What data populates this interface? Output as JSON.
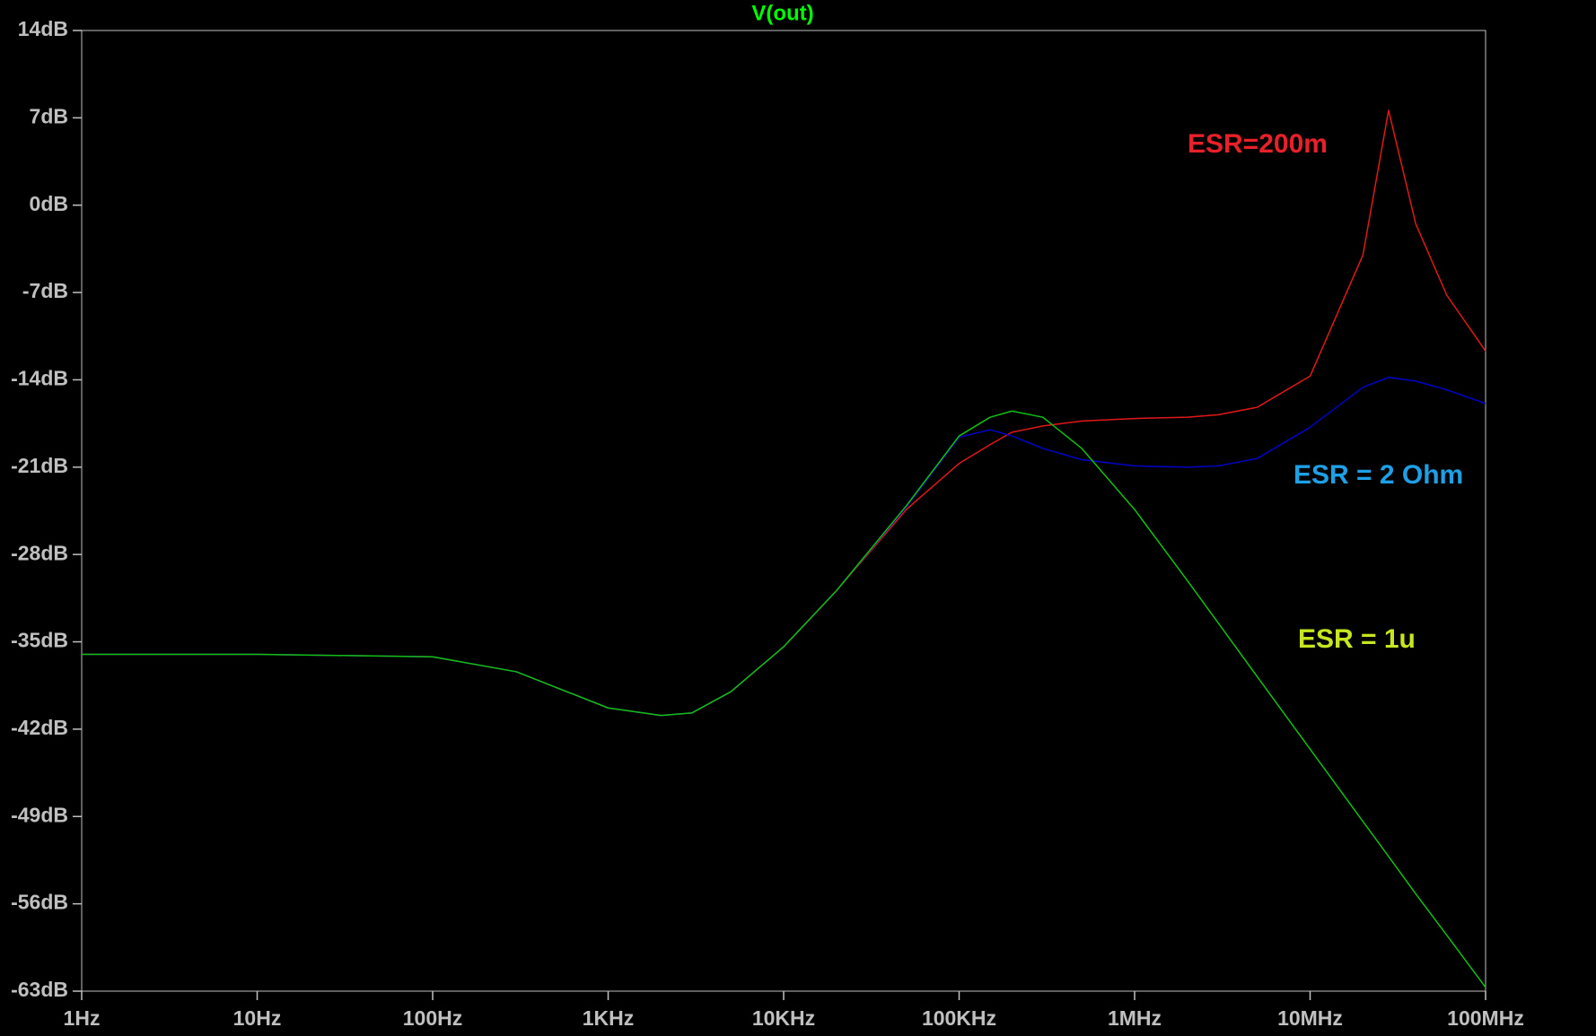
{
  "chart_data": {
    "type": "line",
    "title": "V(out)",
    "title_color": "#00ff00",
    "log_x": true,
    "x": [
      1,
      10,
      100,
      300,
      1000,
      2000,
      3000,
      5000,
      10000,
      20000,
      50000,
      100000,
      150000,
      200000,
      300000,
      500000,
      1000000,
      2000000,
      3000000,
      5000000,
      10000000,
      20000000,
      28000000,
      40000000,
      60000000,
      100000000
    ],
    "xlim": [
      1,
      100000000
    ],
    "xticks": [
      {
        "value": 1,
        "label": "1Hz"
      },
      {
        "value": 10,
        "label": "10Hz"
      },
      {
        "value": 100,
        "label": "100Hz"
      },
      {
        "value": 1000,
        "label": "1KHz"
      },
      {
        "value": 10000,
        "label": "10KHz"
      },
      {
        "value": 100000,
        "label": "100KHz"
      },
      {
        "value": 1000000,
        "label": "1MHz"
      },
      {
        "value": 10000000,
        "label": "10MHz"
      },
      {
        "value": 100000000,
        "label": "100MHz"
      }
    ],
    "ylim": [
      -63,
      14
    ],
    "yticks": [
      {
        "value": 14,
        "label": "14dB"
      },
      {
        "value": 7,
        "label": "7dB"
      },
      {
        "value": 0,
        "label": "0dB"
      },
      {
        "value": -7,
        "label": "-7dB"
      },
      {
        "value": -14,
        "label": "-14dB"
      },
      {
        "value": -21,
        "label": "-21dB"
      },
      {
        "value": -28,
        "label": "-28dB"
      },
      {
        "value": -35,
        "label": "-35dB"
      },
      {
        "value": -42,
        "label": "-42dB"
      },
      {
        "value": -49,
        "label": "-49dB"
      },
      {
        "value": -56,
        "label": "-56dB"
      },
      {
        "value": -63,
        "label": "-63dB"
      }
    ],
    "series": [
      {
        "name": "ESR=200m",
        "color": "#e01818",
        "label_color": "#e8202a",
        "values": [
          -36,
          -36,
          -36.2,
          -37.4,
          -40.3,
          -40.9,
          -40.7,
          -39.0,
          -35.4,
          -30.9,
          -24.4,
          -20.7,
          -19.2,
          -18.2,
          -17.7,
          -17.3,
          -17.1,
          -17.0,
          -16.8,
          -16.2,
          -13.7,
          -4.0,
          7.6,
          -1.5,
          -7.2,
          -11.7
        ]
      },
      {
        "name": "ESR = 2 Ohm",
        "color": "#0000c8",
        "label_color": "#1ea0e6",
        "values": [
          -36,
          -36,
          -36.2,
          -37.4,
          -40.3,
          -40.9,
          -40.7,
          -39.0,
          -35.4,
          -30.9,
          -24.2,
          -18.6,
          -18.0,
          -18.5,
          -19.5,
          -20.4,
          -20.9,
          -21.0,
          -20.9,
          -20.3,
          -17.8,
          -14.6,
          -13.8,
          -14.1,
          -14.8,
          -15.9
        ]
      },
      {
        "name": "ESR = 1u",
        "color": "#10c010",
        "label_color": "#c8e61e",
        "values": [
          -36,
          -36,
          -36.2,
          -37.4,
          -40.3,
          -40.9,
          -40.7,
          -39.0,
          -35.4,
          -30.9,
          -24.1,
          -18.5,
          -17.0,
          -16.5,
          -17.0,
          -19.5,
          -24.4,
          -30.1,
          -33.5,
          -37.8,
          -43.6,
          -49.4,
          -52.2,
          -55.2,
          -58.5,
          -62.7
        ]
      }
    ]
  }
}
